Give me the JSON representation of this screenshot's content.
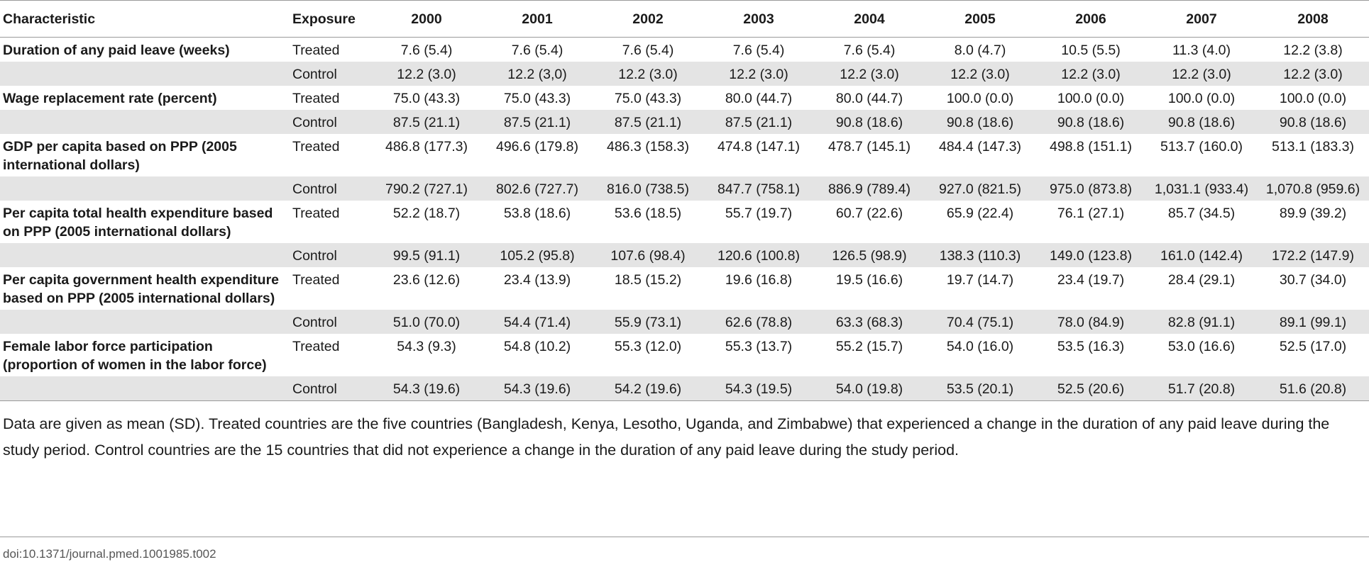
{
  "table": {
    "headers": {
      "characteristic": "Characteristic",
      "exposure": "Exposure",
      "years": [
        "2000",
        "2001",
        "2002",
        "2003",
        "2004",
        "2005",
        "2006",
        "2007",
        "2008"
      ]
    },
    "groups": [
      {
        "characteristic": "Duration of any paid leave (weeks)",
        "treated": {
          "exposure": "Treated",
          "values": [
            "7.6 (5.4)",
            "7.6 (5.4)",
            "7.6 (5.4)",
            "7.6 (5.4)",
            "7.6 (5.4)",
            "8.0 (4.7)",
            "10.5 (5.5)",
            "11.3 (4.0)",
            "12.2 (3.8)"
          ]
        },
        "control": {
          "exposure": "Control",
          "values": [
            "12.2 (3.0)",
            "12.2 (3,0)",
            "12.2 (3.0)",
            "12.2 (3.0)",
            "12.2 (3.0)",
            "12.2 (3.0)",
            "12.2 (3.0)",
            "12.2 (3.0)",
            "12.2 (3.0)"
          ]
        }
      },
      {
        "characteristic": "Wage replacement rate (percent)",
        "treated": {
          "exposure": "Treated",
          "values": [
            "75.0 (43.3)",
            "75.0 (43.3)",
            "75.0 (43.3)",
            "80.0 (44.7)",
            "80.0 (44.7)",
            "100.0 (0.0)",
            "100.0 (0.0)",
            "100.0 (0.0)",
            "100.0 (0.0)"
          ]
        },
        "control": {
          "exposure": "Control",
          "values": [
            "87.5 (21.1)",
            "87.5 (21.1)",
            "87.5 (21.1)",
            "87.5 (21.1)",
            "90.8 (18.6)",
            "90.8 (18.6)",
            "90.8 (18.6)",
            "90.8 (18.6)",
            "90.8 (18.6)"
          ]
        }
      },
      {
        "characteristic": "GDP per capita based on PPP (2005 international dollars)",
        "treated": {
          "exposure": "Treated",
          "values": [
            "486.8 (177.3)",
            "496.6 (179.8)",
            "486.3 (158.3)",
            "474.8 (147.1)",
            "478.7 (145.1)",
            "484.4 (147.3)",
            "498.8 (151.1)",
            "513.7 (160.0)",
            "513.1 (183.3)"
          ]
        },
        "control": {
          "exposure": "Control",
          "values": [
            "790.2 (727.1)",
            "802.6 (727.7)",
            "816.0 (738.5)",
            "847.7 (758.1)",
            "886.9 (789.4)",
            "927.0 (821.5)",
            "975.0 (873.8)",
            "1,031.1 (933.4)",
            "1,070.8 (959.6)"
          ]
        }
      },
      {
        "characteristic": "Per capita total health expenditure based on PPP (2005 international dollars)",
        "treated": {
          "exposure": "Treated",
          "values": [
            "52.2 (18.7)",
            "53.8 (18.6)",
            "53.6 (18.5)",
            "55.7 (19.7)",
            "60.7 (22.6)",
            "65.9 (22.4)",
            "76.1 (27.1)",
            "85.7 (34.5)",
            "89.9 (39.2)"
          ]
        },
        "control": {
          "exposure": "Control",
          "values": [
            "99.5 (91.1)",
            "105.2 (95.8)",
            "107.6 (98.4)",
            "120.6 (100.8)",
            "126.5 (98.9)",
            "138.3 (110.3)",
            "149.0 (123.8)",
            "161.0 (142.4)",
            "172.2 (147.9)"
          ]
        }
      },
      {
        "characteristic": "Per capita government health expenditure based on PPP (2005 international dollars)",
        "treated": {
          "exposure": "Treated",
          "values": [
            "23.6 (12.6)",
            "23.4 (13.9)",
            "18.5 (15.2)",
            "19.6 (16.8)",
            "19.5 (16.6)",
            "19.7 (14.7)",
            "23.4 (19.7)",
            "28.4 (29.1)",
            "30.7 (34.0)"
          ]
        },
        "control": {
          "exposure": "Control",
          "values": [
            "51.0 (70.0)",
            "54.4 (71.4)",
            "55.9 (73.1)",
            "62.6 (78.8)",
            "63.3 (68.3)",
            "70.4 (75.1)",
            "78.0 (84.9)",
            "82.8 (91.1)",
            "89.1 (99.1)"
          ]
        }
      },
      {
        "characteristic": "Female labor force participation (proportion of women in the labor force)",
        "treated": {
          "exposure": "Treated",
          "values": [
            "54.3 (9.3)",
            "54.8 (10.2)",
            "55.3 (12.0)",
            "55.3 (13.7)",
            "55.2 (15.7)",
            "54.0 (16.0)",
            "53.5 (16.3)",
            "53.0 (16.6)",
            "52.5 (17.0)"
          ]
        },
        "control": {
          "exposure": "Control",
          "values": [
            "54.3 (19.6)",
            "54.3 (19.6)",
            "54.2 (19.6)",
            "54.3 (19.5)",
            "54.0 (19.8)",
            "53.5 (20.1)",
            "52.5 (20.6)",
            "51.7 (20.8)",
            "51.6 (20.8)"
          ]
        }
      }
    ]
  },
  "footnote": "Data are given as mean (SD). Treated countries are the five countries (Bangladesh, Kenya, Lesotho, Uganda, and Zimbabwe) that experienced a change in the duration of any paid leave during the study period. Control countries are the 15 countries that did not experience a change in the duration of any paid leave during the study period.",
  "doi": "doi:10.1371/journal.pmed.1001985.t002",
  "colors": {
    "control_row_background": "#e4e4e4",
    "treated_row_background": "#ffffff",
    "rule": "#9a9a9a",
    "text": "#1a1a1a"
  }
}
